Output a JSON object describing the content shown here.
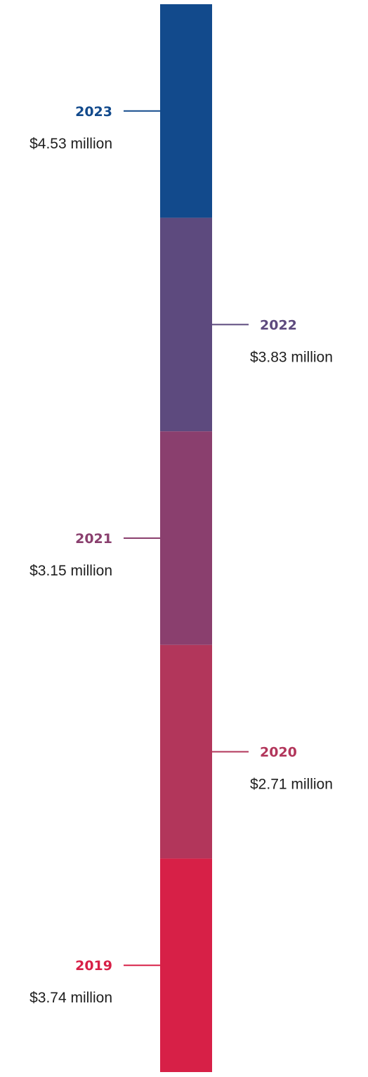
{
  "chart_data": {
    "type": "bar",
    "title": "",
    "xlabel": "",
    "ylabel": "",
    "categories": [
      "2023",
      "2022",
      "2021",
      "2020",
      "2019"
    ],
    "values": [
      4.53,
      3.83,
      3.15,
      2.71,
      3.74
    ],
    "value_labels": [
      "$4.53 million",
      "$3.83 million",
      "$3.15 million",
      "$2.71 million",
      "$3.74 million"
    ],
    "colors": [
      "#124a8c",
      "#5d4a7e",
      "#8a3f6e",
      "#b2365b",
      "#d72047"
    ],
    "label_sides": [
      "left",
      "right",
      "left",
      "right",
      "left"
    ],
    "grid": false,
    "legend": "none"
  }
}
